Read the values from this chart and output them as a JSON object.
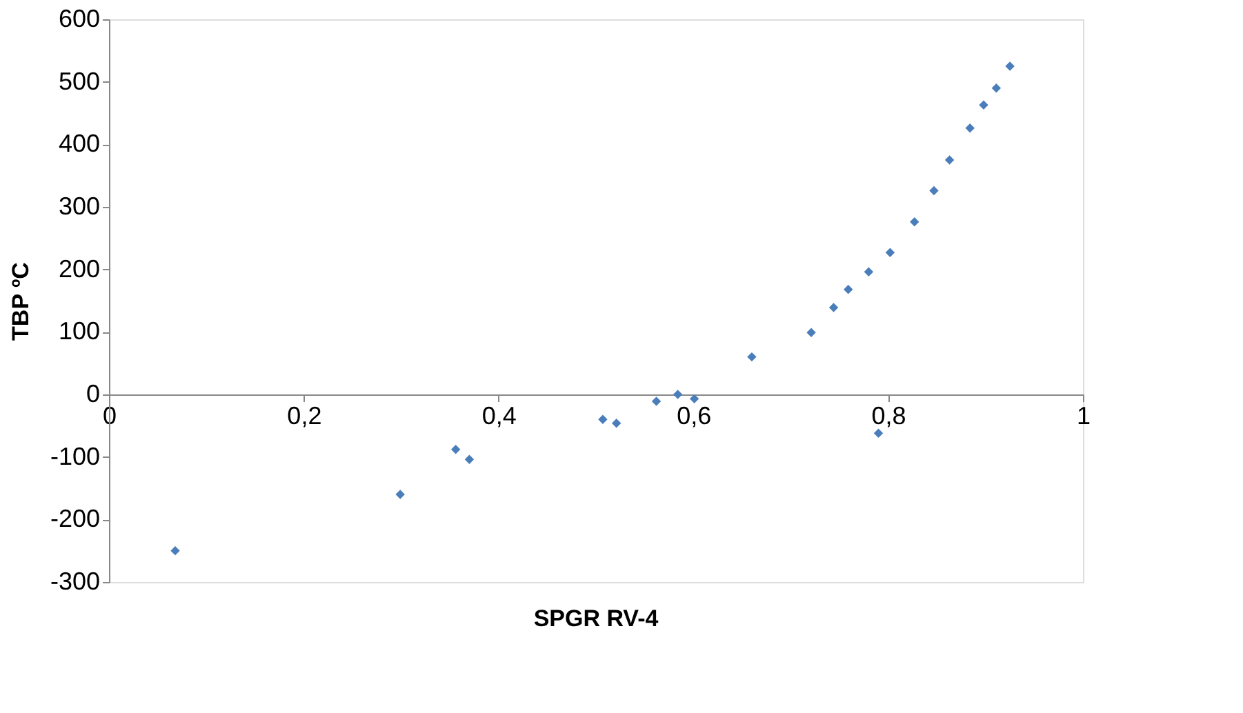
{
  "chart_data": {
    "type": "scatter",
    "xlabel": "SPGR RV-4",
    "ylabel": "TBP ºC",
    "x": [
      0.068,
      0.299,
      0.356,
      0.37,
      0.507,
      0.521,
      0.562,
      0.584,
      0.601,
      0.66,
      0.721,
      0.744,
      0.759,
      0.78,
      0.79,
      0.802,
      0.827,
      0.847,
      0.863,
      0.884,
      0.898,
      0.911,
      0.925
    ],
    "series": [
      {
        "color": "#4a7ebb",
        "values": [
          -250,
          -160,
          -88,
          -104,
          -40,
          -46,
          -11,
          0,
          -7,
          60,
          99,
          139,
          168,
          196,
          -62,
          227,
          276,
          326,
          375,
          426,
          463,
          490,
          525
        ]
      }
    ],
    "xlim": [
      0,
      1
    ],
    "ylim": [
      -300,
      600
    ],
    "xticks": [
      0,
      {
        "value": 0.2,
        "label": "0,2"
      },
      {
        "value": 0.4,
        "label": "0,4"
      },
      {
        "value": 0.6,
        "label": "0,6"
      },
      {
        "value": 0.8,
        "label": "0,8"
      },
      1
    ],
    "yticks": [
      -300,
      -200,
      -100,
      0,
      100,
      200,
      300,
      400,
      500,
      600
    ],
    "marker": "diamond",
    "grid": false,
    "legend": false
  }
}
